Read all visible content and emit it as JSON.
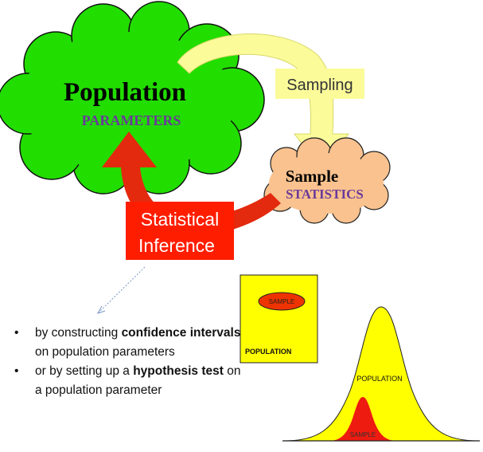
{
  "diagram": {
    "population_title": "Population",
    "population_subtitle": "PARAMETERS",
    "sampling_label": "Sampling",
    "sample_title": "Sample",
    "sample_subtitle": "STATISTICS",
    "inference_line1": "Statistical",
    "inference_line2": "Inference",
    "box_sample_label": "SAMPLE",
    "box_population_label": "POPULATION",
    "curve_population_label": "POPULATION",
    "curve_sample_label": "SAMPLE"
  },
  "bullets": [
    {
      "segments": [
        {
          "text": "by constructing ",
          "bold": false
        },
        {
          "text": "confidence intervals",
          "bold": true
        },
        {
          "text": " on population parameters",
          "bold": false
        }
      ]
    },
    {
      "segments": [
        {
          "text": "or by setting up a ",
          "bold": false
        },
        {
          "text": "hypothesis test",
          "bold": true
        },
        {
          "text": " on a population parameter",
          "bold": false
        }
      ]
    }
  ],
  "colors": {
    "population_cloud": "#22dd00",
    "sample_cloud": "#f9c28e",
    "sampling_arrow": "#fbfb9a",
    "inference_box": "#ff1d00",
    "inference_arrow": "#e32a0f",
    "subtitle_purple": "#6a3a9a",
    "box_yellow": "#ffff00",
    "sample_ellipse": "#ee3300"
  }
}
